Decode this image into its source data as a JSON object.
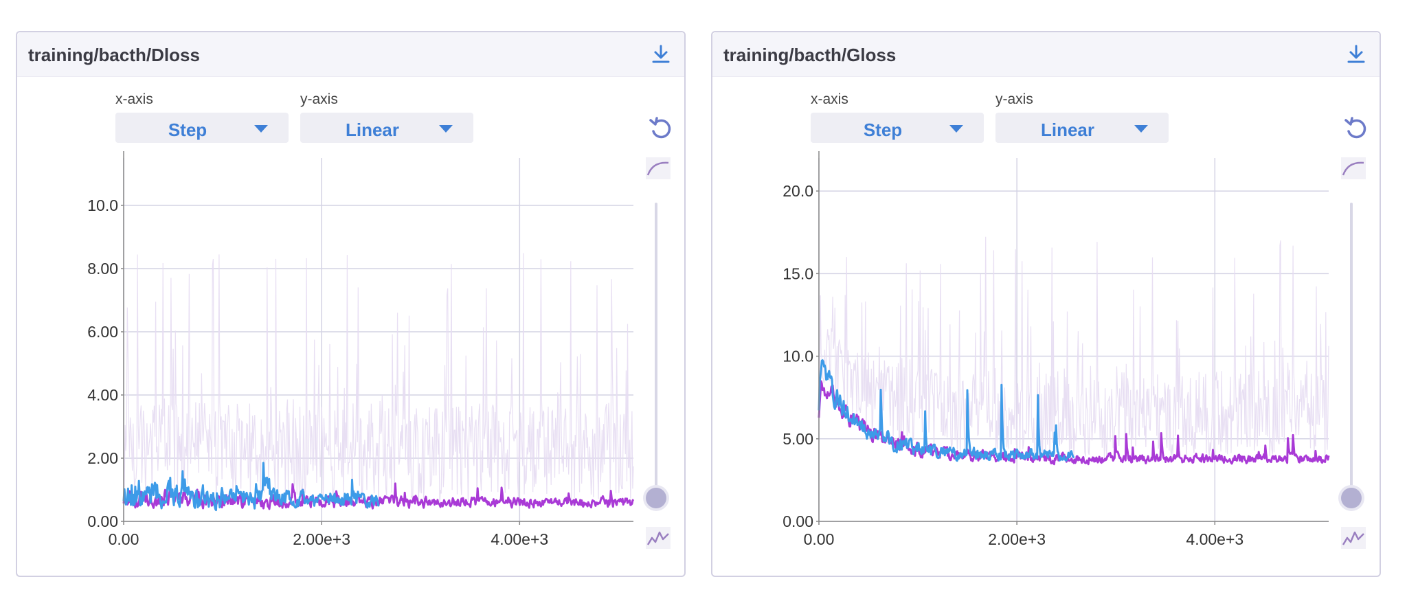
{
  "cards": [
    {
      "title": "training/bacth/Dloss",
      "xaxis_label": "x-axis",
      "yaxis_label": "y-axis",
      "xaxis_value": "Step",
      "yaxis_value": "Linear"
    },
    {
      "title": "training/bacth/Gloss",
      "xaxis_label": "x-axis",
      "yaxis_label": "y-axis",
      "xaxis_value": "Step",
      "yaxis_value": "Linear"
    }
  ],
  "colors": {
    "series_purple": "#a93ad6",
    "series_blue": "#3d9be8",
    "series_shadow": "#e6dcf2",
    "grid": "#d4d3e4",
    "accent": "#3e7fd6"
  },
  "chart_data": [
    {
      "type": "line",
      "title": "training/bacth/Dloss",
      "xlim": [
        0,
        5150
      ],
      "ylim": [
        0,
        11.5
      ],
      "x_ticks": [
        0,
        2000,
        4000
      ],
      "x_tick_labels": [
        "0.00",
        "2.00e+3",
        "4.00e+3"
      ],
      "y_ticks": [
        0,
        2,
        4,
        6,
        8,
        10
      ],
      "y_tick_labels": [
        "0.00",
        "2.00",
        "4.00",
        "6.00",
        "8.00",
        "10.0"
      ],
      "grid": true,
      "series": [
        {
          "color": "#a93ad6",
          "x_end": 5150,
          "base": 0.6,
          "noise": 0.35,
          "decay_amp": 0.2,
          "decay_tau": 800,
          "spike_amp": 1.8,
          "raw_max": 9.5,
          "seed": 11
        },
        {
          "color": "#3d9be8",
          "x_end": 2580,
          "base": 0.7,
          "noise": 0.55,
          "decay_amp": 0.3,
          "decay_tau": 500,
          "spike_amp": 2.8,
          "raw_max": 9.0,
          "seed": 23
        }
      ]
    },
    {
      "type": "line",
      "title": "training/bacth/Gloss",
      "xlim": [
        0,
        5150
      ],
      "ylim": [
        0,
        22
      ],
      "x_ticks": [
        0,
        2000,
        4000
      ],
      "x_tick_labels": [
        "0.00",
        "2.00e+3",
        "4.00e+3"
      ],
      "y_ticks": [
        0,
        5,
        10,
        15,
        20
      ],
      "y_tick_labels": [
        "0.00",
        "5.00",
        "10.0",
        "15.0",
        "20.0"
      ],
      "grid": true,
      "series": [
        {
          "color": "#a93ad6",
          "x_end": 5150,
          "base": 3.8,
          "noise": 0.7,
          "decay_amp": 5.0,
          "decay_tau": 450,
          "spike_amp": 7.6,
          "raw_max": 19.0,
          "seed": 37
        },
        {
          "color": "#3d9be8",
          "x_end": 2580,
          "base": 4.0,
          "noise": 0.8,
          "decay_amp": 5.5,
          "decay_tau": 380,
          "spike_amp": 13.4,
          "raw_max": 18.0,
          "seed": 41
        }
      ]
    }
  ]
}
